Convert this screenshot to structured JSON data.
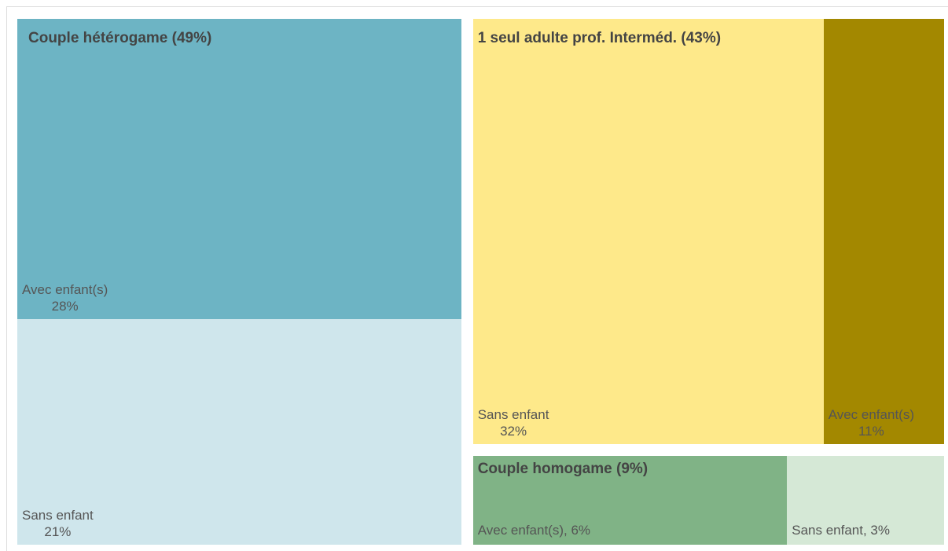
{
  "chart_data": {
    "type": "treemap",
    "groups": [
      {
        "name": "Couple hétérogame (49%)",
        "value": 49,
        "children": [
          {
            "name": "Avec enfant(s)",
            "value": 28,
            "value_label": "28%",
            "color": "#6db4c4"
          },
          {
            "name": "Sans enfant",
            "value": 21,
            "value_label": "21%",
            "color": "#cfe6ec"
          }
        ]
      },
      {
        "name": "1 seul adulte prof. Interméd. (43%)",
        "value": 43,
        "children": [
          {
            "name": "Sans enfant",
            "value": 32,
            "value_label": "32%",
            "color": "#fee98a"
          },
          {
            "name": "Avec enfant(s)",
            "value": 11,
            "value_label": "11%",
            "color": "#a38800"
          }
        ]
      },
      {
        "name": "Couple homogame (9%)",
        "value": 9,
        "children": [
          {
            "name": "Avec enfant(s), 6%",
            "value": 6,
            "color": "#80b386"
          },
          {
            "name": "Sans enfant, 3%",
            "value": 3,
            "color": "#d5e8d6"
          }
        ]
      }
    ]
  }
}
